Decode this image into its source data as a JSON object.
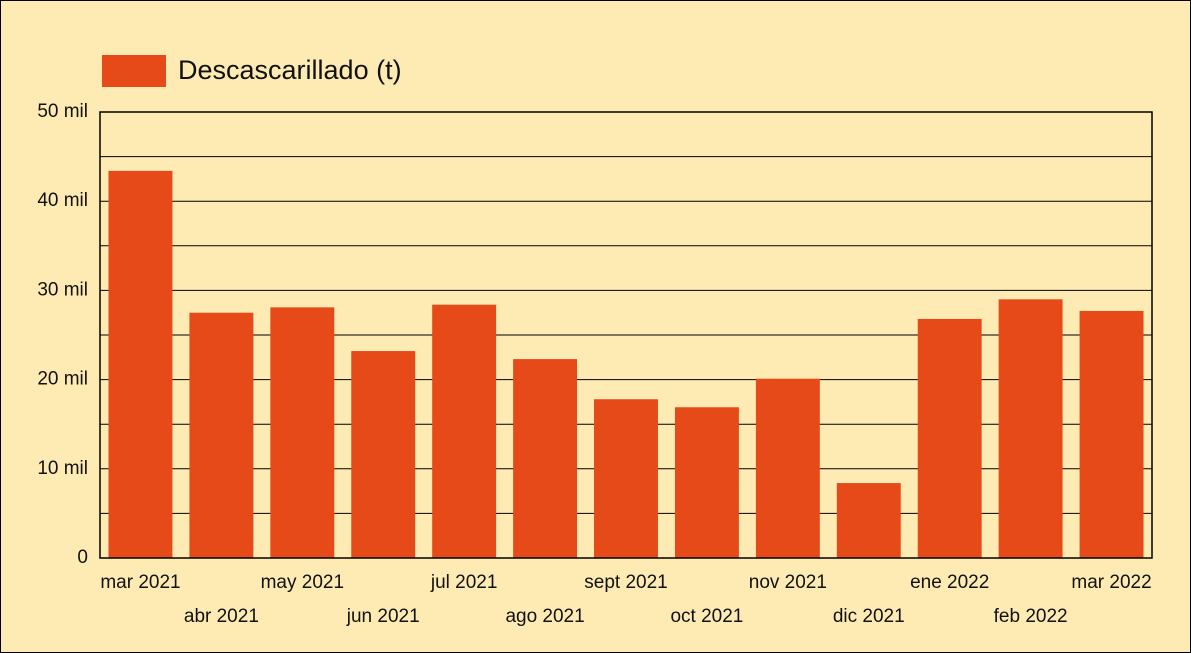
{
  "chart_data": {
    "type": "bar",
    "categories": [
      "mar 2021",
      "abr 2021",
      "may 2021",
      "jun 2021",
      "jul 2021",
      "ago 2021",
      "sept 2021",
      "oct 2021",
      "nov 2021",
      "dic 2021",
      "ene 2022",
      "feb 2022",
      "mar 2022"
    ],
    "series": [
      {
        "name": "Descascarillado (t)",
        "color": "#e64a19",
        "values": [
          43400,
          27500,
          28100,
          23200,
          28400,
          22300,
          17800,
          16900,
          20100,
          8400,
          26800,
          29000,
          27700
        ]
      }
    ],
    "ylim": [
      0,
      50000
    ],
    "yticks": [
      0,
      {
        "value": 10000,
        "label": "10 mil"
      },
      {
        "value": 20000,
        "label": "20 mil"
      },
      {
        "value": 30000,
        "label": "30 mil"
      },
      {
        "value": 40000,
        "label": "40 mil"
      },
      {
        "value": 50000,
        "label": "50 mil"
      }
    ],
    "minor_yticks": [
      5000,
      15000,
      25000,
      35000,
      45000
    ],
    "grid": true,
    "legend": "top-left"
  }
}
